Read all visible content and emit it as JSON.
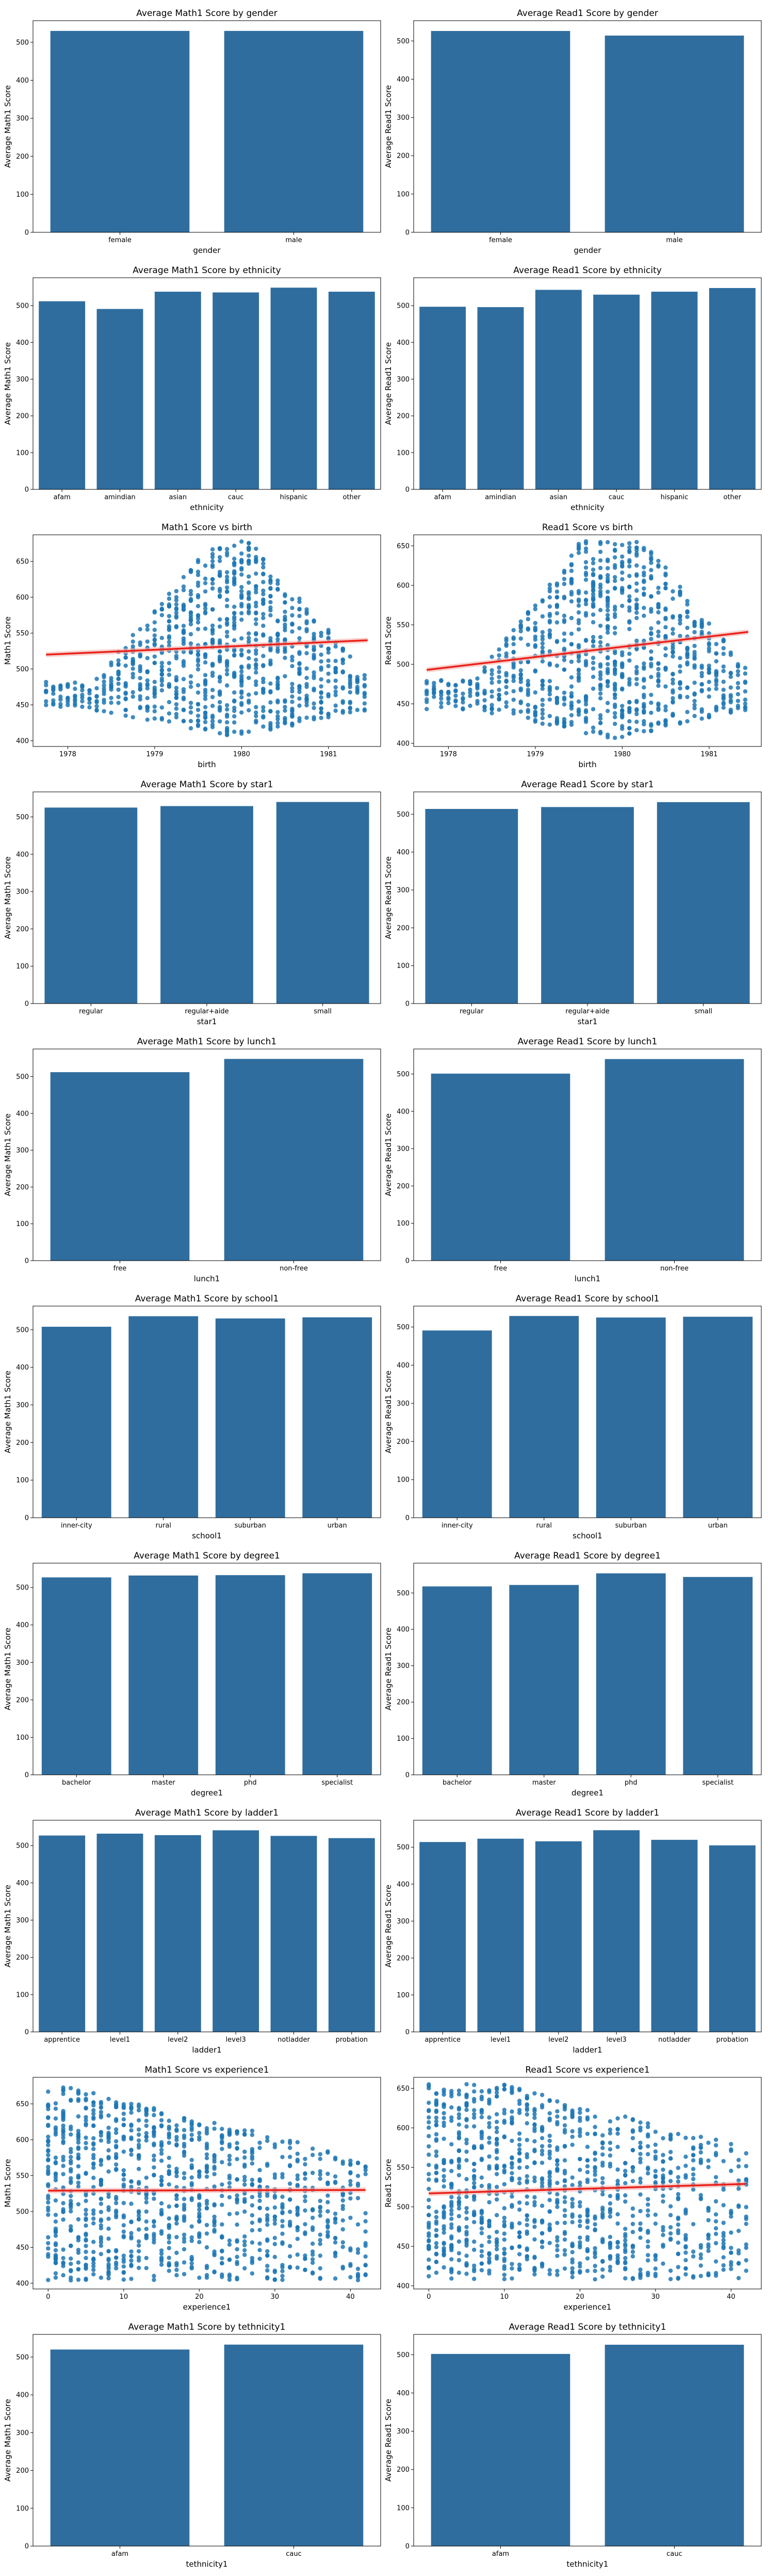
{
  "colors": {
    "bar": "#2f6d9e",
    "point": "#1f77b4",
    "regression": "#e8221b",
    "band": "#f4b3ae",
    "axis": "#000000"
  },
  "chart_data": [
    {
      "type": "bar",
      "title": "Average Math1 Score by gender",
      "xlabel": "gender",
      "ylabel": "Average Math1 Score",
      "categories": [
        "female",
        "male"
      ],
      "values": [
        530,
        530
      ],
      "ylim": [
        0,
        557
      ],
      "yticks": [
        0,
        100,
        200,
        300,
        400,
        500
      ]
    },
    {
      "type": "bar",
      "title": "Average Read1 Score by gender",
      "xlabel": "gender",
      "ylabel": "Average Read1 Score",
      "categories": [
        "female",
        "male"
      ],
      "values": [
        526,
        514
      ],
      "ylim": [
        0,
        553
      ],
      "yticks": [
        0,
        100,
        200,
        300,
        400,
        500
      ]
    },
    {
      "type": "bar",
      "title": "Average Math1 Score by ethnicity",
      "xlabel": "ethnicity",
      "ylabel": "Average Math1 Score",
      "categories": [
        "afam",
        "amindian",
        "asian",
        "cauc",
        "hispanic",
        "other"
      ],
      "values": [
        512,
        491,
        538,
        536,
        549,
        538
      ],
      "ylim": [
        0,
        576
      ],
      "yticks": [
        0,
        100,
        200,
        300,
        400,
        500
      ]
    },
    {
      "type": "bar",
      "title": "Average Read1 Score by ethnicity",
      "xlabel": "ethnicity",
      "ylabel": "Average Read1 Score",
      "categories": [
        "afam",
        "amindian",
        "asian",
        "cauc",
        "hispanic",
        "other"
      ],
      "values": [
        497,
        496,
        543,
        530,
        538,
        548
      ],
      "ylim": [
        0,
        576
      ],
      "yticks": [
        0,
        100,
        200,
        300,
        400,
        500
      ]
    },
    {
      "type": "scatter",
      "title": "Math1 Score vs birth",
      "xlabel": "birth",
      "ylabel": "Math1 Score",
      "xlim": [
        1977.6,
        1981.6
      ],
      "ylim": [
        392,
        687
      ],
      "xticks": [
        1978,
        1979,
        1980,
        1981
      ],
      "yticks": [
        400,
        450,
        500,
        550,
        600,
        650
      ],
      "regression": {
        "x": [
          1977.75,
          1981.45
        ],
        "y": [
          520,
          540
        ]
      }
    },
    {
      "type": "scatter",
      "title": "Read1 Score vs birth",
      "xlabel": "birth",
      "ylabel": "Read1 Score",
      "xlim": [
        1977.6,
        1981.6
      ],
      "ylim": [
        396,
        664
      ],
      "xticks": [
        1978,
        1979,
        1980,
        1981
      ],
      "yticks": [
        400,
        450,
        500,
        550,
        600,
        650
      ],
      "regression": {
        "x": [
          1977.75,
          1981.45
        ],
        "y": [
          493,
          541
        ]
      }
    },
    {
      "type": "bar",
      "title": "Average Math1 Score by star1",
      "xlabel": "star1",
      "ylabel": "Average Math1 Score",
      "categories": [
        "regular",
        "regular+aide",
        "small"
      ],
      "values": [
        525,
        529,
        540
      ],
      "ylim": [
        0,
        567
      ],
      "yticks": [
        0,
        100,
        200,
        300,
        400,
        500
      ]
    },
    {
      "type": "bar",
      "title": "Average Read1 Score by star1",
      "xlabel": "star1",
      "ylabel": "Average Read1 Score",
      "categories": [
        "regular",
        "regular+aide",
        "small"
      ],
      "values": [
        514,
        519,
        532
      ],
      "ylim": [
        0,
        559
      ],
      "yticks": [
        0,
        100,
        200,
        300,
        400,
        500
      ]
    },
    {
      "type": "bar",
      "title": "Average Math1 Score by lunch1",
      "xlabel": "lunch1",
      "ylabel": "Average Math1 Score",
      "categories": [
        "free",
        "non-free"
      ],
      "values": [
        512,
        548
      ],
      "ylim": [
        0,
        575
      ],
      "yticks": [
        0,
        100,
        200,
        300,
        400,
        500
      ]
    },
    {
      "type": "bar",
      "title": "Average Read1 Score by lunch1",
      "xlabel": "lunch1",
      "ylabel": "Average Read1 Score",
      "categories": [
        "free",
        "non-free"
      ],
      "values": [
        501,
        540
      ],
      "ylim": [
        0,
        567
      ],
      "yticks": [
        0,
        100,
        200,
        300,
        400,
        500
      ]
    },
    {
      "type": "bar",
      "title": "Average Math1 Score by school1",
      "xlabel": "school1",
      "ylabel": "Average Math1 Score",
      "categories": [
        "inner-city",
        "rural",
        "suburban",
        "urban"
      ],
      "values": [
        508,
        536,
        530,
        533
      ],
      "ylim": [
        0,
        563
      ],
      "yticks": [
        0,
        100,
        200,
        300,
        400,
        500
      ]
    },
    {
      "type": "bar",
      "title": "Average Read1 Score by school1",
      "xlabel": "school1",
      "ylabel": "Average Read1 Score",
      "categories": [
        "inner-city",
        "rural",
        "suburban",
        "urban"
      ],
      "values": [
        491,
        529,
        525,
        527
      ],
      "ylim": [
        0,
        555
      ],
      "yticks": [
        0,
        100,
        200,
        300,
        400,
        500
      ]
    },
    {
      "type": "bar",
      "title": "Average Math1 Score by degree1",
      "xlabel": "degree1",
      "ylabel": "Average Math1 Score",
      "categories": [
        "bachelor",
        "master",
        "phd",
        "specialist"
      ],
      "values": [
        527,
        532,
        533,
        538
      ],
      "ylim": [
        0,
        565
      ],
      "yticks": [
        0,
        100,
        200,
        300,
        400,
        500
      ]
    },
    {
      "type": "bar",
      "title": "Average Read1 Score by degree1",
      "xlabel": "degree1",
      "ylabel": "Average Read1 Score",
      "categories": [
        "bachelor",
        "master",
        "phd",
        "specialist"
      ],
      "values": [
        518,
        522,
        554,
        544
      ],
      "ylim": [
        0,
        582
      ],
      "yticks": [
        0,
        100,
        200,
        300,
        400,
        500
      ]
    },
    {
      "type": "bar",
      "title": "Average Math1 Score by ladder1",
      "xlabel": "ladder1",
      "ylabel": "Average Math1 Score",
      "categories": [
        "apprentice",
        "level1",
        "level2",
        "level3",
        "notladder",
        "probation"
      ],
      "values": [
        527,
        532,
        528,
        541,
        526,
        520
      ],
      "ylim": [
        0,
        568
      ],
      "yticks": [
        0,
        100,
        200,
        300,
        400,
        500
      ]
    },
    {
      "type": "bar",
      "title": "Average Read1 Score by ladder1",
      "xlabel": "ladder1",
      "ylabel": "Average Read1 Score",
      "categories": [
        "apprentice",
        "level1",
        "level2",
        "level3",
        "notladder",
        "probation"
      ],
      "values": [
        514,
        523,
        516,
        546,
        520,
        505
      ],
      "ylim": [
        0,
        573
      ],
      "yticks": [
        0,
        100,
        200,
        300,
        400,
        500
      ]
    },
    {
      "type": "scatter",
      "title": "Math1 Score vs experience1",
      "xlabel": "experience1",
      "ylabel": "Math1 Score",
      "xlim": [
        -2,
        44
      ],
      "ylim": [
        392,
        687
      ],
      "xticks": [
        0,
        10,
        20,
        30,
        40
      ],
      "yticks": [
        400,
        450,
        500,
        550,
        600,
        650
      ],
      "regression": {
        "x": [
          0,
          42
        ],
        "y": [
          529,
          530
        ]
      }
    },
    {
      "type": "scatter",
      "title": "Read1 Score vs experience1",
      "xlabel": "experience1",
      "ylabel": "Read1 Score",
      "xlim": [
        -2,
        44
      ],
      "ylim": [
        396,
        664
      ],
      "xticks": [
        0,
        10,
        20,
        30,
        40
      ],
      "yticks": [
        400,
        450,
        500,
        550,
        600,
        650
      ],
      "regression": {
        "x": [
          0,
          42
        ],
        "y": [
          517,
          529
        ]
      }
    },
    {
      "type": "bar",
      "title": "Average Math1 Score by tethnicity1",
      "xlabel": "tethnicity1",
      "ylabel": "Average Math1 Score",
      "categories": [
        "afam",
        "cauc"
      ],
      "values": [
        520,
        533
      ],
      "ylim": [
        0,
        560
      ],
      "yticks": [
        0,
        100,
        200,
        300,
        400,
        500
      ]
    },
    {
      "type": "bar",
      "title": "Average Read1 Score by tethnicity1",
      "xlabel": "tethnicity1",
      "ylabel": "Average Read1 Score",
      "categories": [
        "afam",
        "cauc"
      ],
      "values": [
        502,
        526
      ],
      "ylim": [
        0,
        553
      ],
      "yticks": [
        0,
        100,
        200,
        300,
        400,
        500
      ]
    }
  ]
}
